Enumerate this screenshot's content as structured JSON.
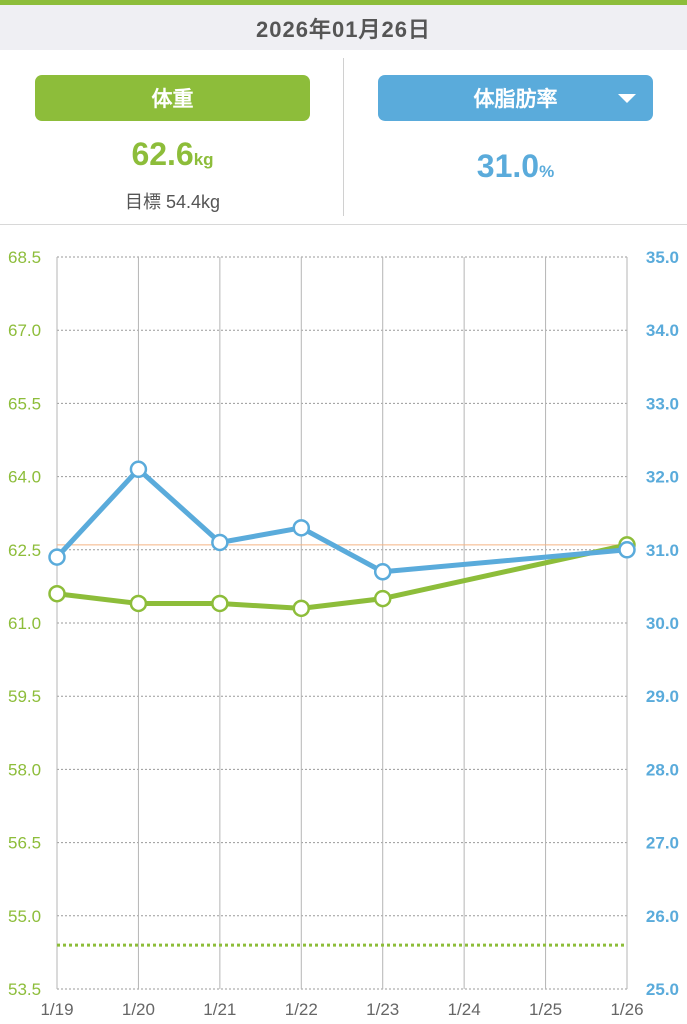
{
  "header": {
    "date": "2026年01月26日"
  },
  "weight_panel": {
    "button_label": "体重",
    "value": "62.6",
    "unit": "kg",
    "target_label": "目標",
    "target_value": "54.4kg"
  },
  "fat_panel": {
    "button_label": "体脂肪率",
    "dropdown_icon": "caret-down-icon",
    "value": "31.0",
    "unit": "%"
  },
  "colors": {
    "weight": "#8dbd3a",
    "fat": "#5aabdb",
    "reference_line": "#f5b583",
    "grid": "#9a9a9a",
    "date_bar_bg": "#efeff3",
    "header_accent": "#8dbd3a"
  },
  "chart_data": {
    "type": "line",
    "x": [
      "1/19",
      "1/20",
      "1/21",
      "1/22",
      "1/23",
      "1/24",
      "1/25",
      "1/26"
    ],
    "left_axis": {
      "ticks": [
        "68.5",
        "67.0",
        "65.5",
        "64.0",
        "62.5",
        "61.0",
        "59.5",
        "58.0",
        "56.5",
        "55.0",
        "53.5"
      ],
      "range": [
        53.5,
        68.5
      ]
    },
    "right_axis": {
      "ticks": [
        "35.0",
        "34.0",
        "33.0",
        "32.0",
        "31.0",
        "30.0",
        "29.0",
        "28.0",
        "27.0",
        "26.0",
        "25.0"
      ],
      "range": [
        25.0,
        35.0
      ]
    },
    "series": [
      {
        "axis": "left",
        "color": "#8dbd3a",
        "points": [
          [
            "1/19",
            61.6
          ],
          [
            "1/20",
            61.4
          ],
          [
            "1/21",
            61.4
          ],
          [
            "1/22",
            61.3
          ],
          [
            "1/23",
            61.5
          ],
          [
            "1/26",
            62.6
          ]
        ]
      },
      {
        "axis": "right",
        "color": "#5aabdb",
        "points": [
          [
            "1/19",
            30.9
          ],
          [
            "1/20",
            32.1
          ],
          [
            "1/21",
            31.1
          ],
          [
            "1/22",
            31.3
          ],
          [
            "1/23",
            30.7
          ],
          [
            "1/26",
            31.0
          ]
        ]
      }
    ],
    "target_line": {
      "axis": "left",
      "value": 54.4,
      "style": "dotted"
    },
    "current_line": {
      "axis": "left",
      "value": 62.6
    },
    "grid": true
  }
}
